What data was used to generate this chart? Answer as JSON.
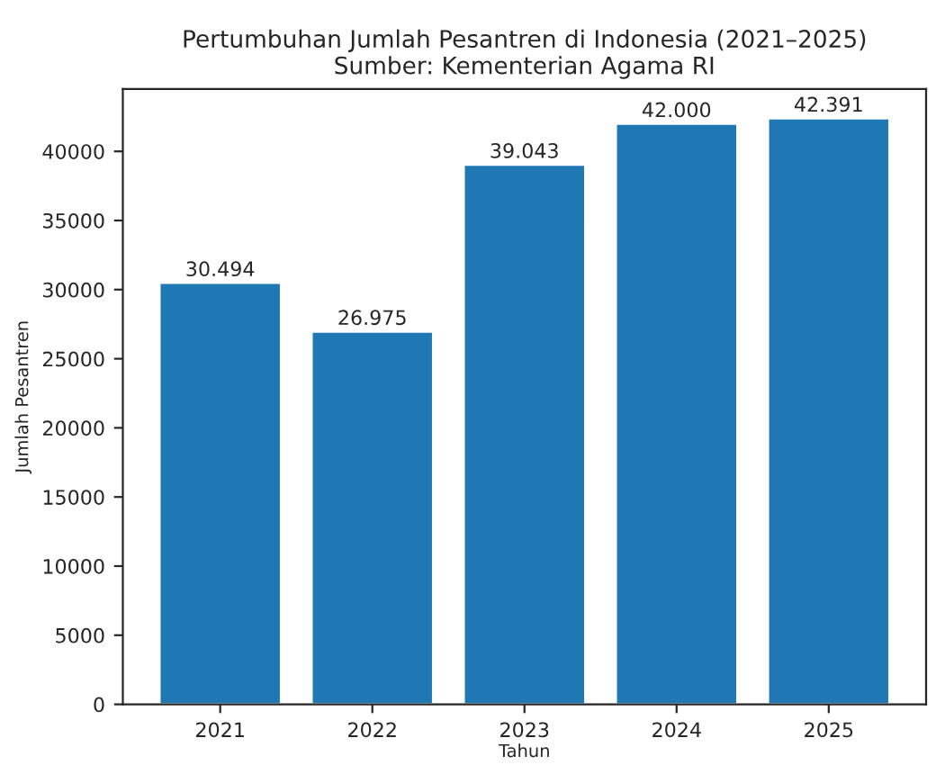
{
  "chart_data": {
    "type": "bar",
    "title": "Pertumbuhan Jumlah Pesantren di Indonesia (2021–2025)",
    "subtitle": "Sumber: Kementerian Agama RI",
    "xlabel": "Tahun",
    "ylabel": "Jumlah Pesantren",
    "categories": [
      "2021",
      "2022",
      "2023",
      "2024",
      "2025"
    ],
    "values": [
      30494,
      26975,
      39043,
      42000,
      42391
    ],
    "value_labels": [
      "30.494",
      "26.975",
      "39.043",
      "42.000",
      "42.391"
    ],
    "color": "#1f77b4",
    "ylim": [
      0,
      44510
    ],
    "yticks": [
      0,
      5000,
      10000,
      15000,
      20000,
      25000,
      30000,
      35000,
      40000
    ],
    "grid": false
  }
}
